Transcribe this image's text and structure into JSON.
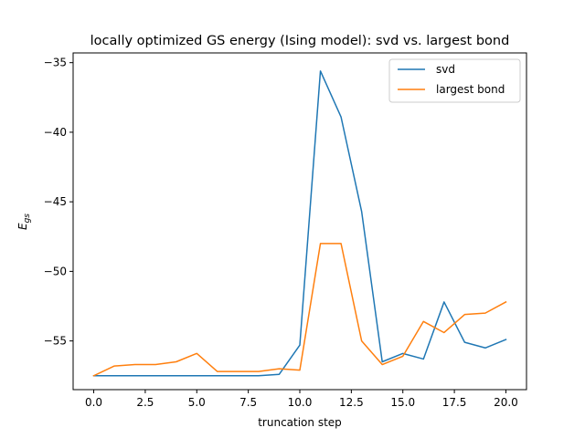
{
  "chart_data": {
    "type": "line",
    "title": "locally optimized GS energy (Ising model): svd vs. largest bond",
    "xlabel": "truncation step",
    "ylabel": "E",
    "ylabel_subscript": "gs",
    "xlim": [
      -1.0,
      21.0
    ],
    "ylim": [
      -58.5,
      -34.3
    ],
    "xticks": [
      0.0,
      2.5,
      5.0,
      7.5,
      10.0,
      12.5,
      15.0,
      17.5,
      20.0
    ],
    "xtick_labels": [
      "0.0",
      "2.5",
      "5.0",
      "7.5",
      "10.0",
      "12.5",
      "15.0",
      "17.5",
      "20.0"
    ],
    "yticks": [
      -55,
      -50,
      -45,
      -40,
      -35
    ],
    "ytick_labels": [
      "−55",
      "−50",
      "−45",
      "−40",
      "−35"
    ],
    "grid": false,
    "legend_position": "top-right",
    "x": [
      0,
      1,
      2,
      3,
      4,
      5,
      6,
      7,
      8,
      9,
      10,
      11,
      12,
      13,
      14,
      15,
      16,
      17,
      18,
      19,
      20
    ],
    "series": [
      {
        "name": "svd",
        "color": "#1f77b4",
        "values": [
          -57.5,
          -57.5,
          -57.5,
          -57.5,
          -57.5,
          -57.5,
          -57.5,
          -57.5,
          -57.5,
          -57.4,
          -55.3,
          -35.6,
          -38.9,
          -45.7,
          -56.5,
          -55.9,
          -56.3,
          -52.2,
          -55.1,
          -55.5,
          -54.9
        ]
      },
      {
        "name": "largest bond",
        "color": "#ff7f0e",
        "values": [
          -57.5,
          -56.8,
          -56.7,
          -56.7,
          -56.5,
          -55.9,
          -57.2,
          -57.2,
          -57.2,
          -57.0,
          -57.1,
          -48.0,
          -48.0,
          -55.0,
          -56.7,
          -56.1,
          -53.6,
          -54.4,
          -53.1,
          -53.0,
          -52.2
        ]
      }
    ]
  }
}
